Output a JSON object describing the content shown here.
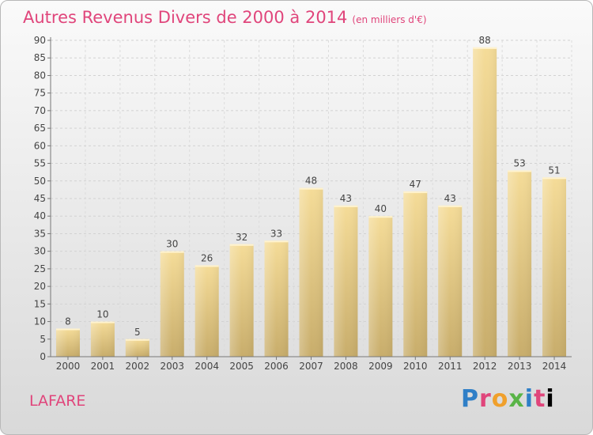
{
  "chart_data": {
    "type": "bar",
    "title": "Autres Revenus Divers de 2000 à 2014",
    "subtitle": "(en milliers d'€)",
    "categories": [
      "2000",
      "2001",
      "2002",
      "2003",
      "2004",
      "2005",
      "2006",
      "2007",
      "2008",
      "2009",
      "2010",
      "2011",
      "2012",
      "2013",
      "2014"
    ],
    "values": [
      8,
      10,
      5,
      30,
      26,
      32,
      33,
      48,
      43,
      40,
      47,
      43,
      88,
      53,
      51
    ],
    "yticks": [
      "0",
      "5",
      "10",
      "15",
      "20",
      "25",
      "30",
      "35",
      "40",
      "45",
      "50",
      "55",
      "60",
      "65",
      "70",
      "75",
      "80",
      "85",
      "90"
    ],
    "ylim": [
      0,
      90
    ],
    "grid": true,
    "bar_color_top": "#f5dc98",
    "bar_color_bottom": "#c8ad6b"
  },
  "place": "LAFARE",
  "brand": {
    "letters": [
      "P",
      "r",
      "o",
      "x",
      "i",
      "t",
      "i"
    ]
  }
}
